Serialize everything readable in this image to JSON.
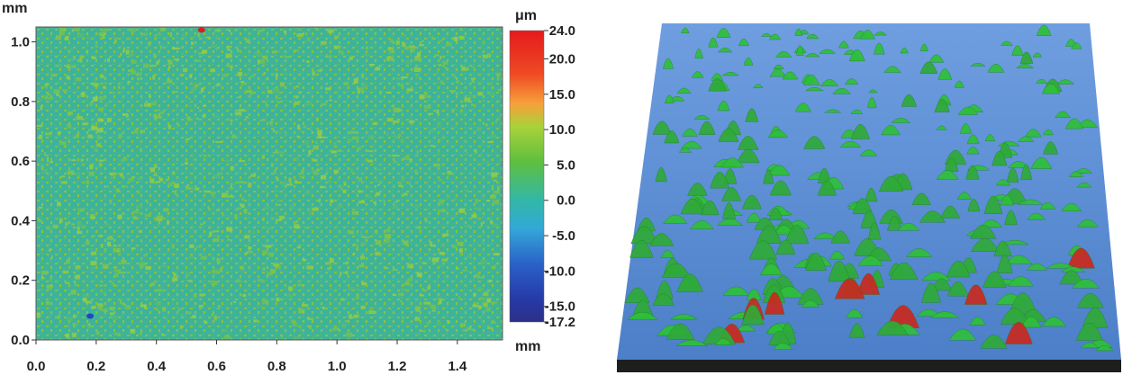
{
  "chart_data": [
    {
      "type": "heatmap",
      "title": "",
      "x_unit_label": "",
      "y_unit_label": "mm",
      "x_axis_label": "mm",
      "xlim": [
        0.0,
        1.55
      ],
      "ylim": [
        0.0,
        1.05
      ],
      "x_ticks": [
        "0.0",
        "0.2",
        "0.4",
        "0.6",
        "0.8",
        "1.0",
        "1.2",
        "1.4"
      ],
      "x_tick_values": [
        0.0,
        0.2,
        0.4,
        0.6,
        0.8,
        1.0,
        1.2,
        1.4
      ],
      "y_ticks": [
        "0.0",
        "0.2",
        "0.4",
        "0.6",
        "0.8",
        "1.0"
      ],
      "y_tick_values": [
        0.0,
        0.2,
        0.4,
        0.6,
        0.8,
        1.0
      ],
      "colorbar": {
        "unit": "μm",
        "min": -17.2,
        "max": 24.0,
        "tick_labels": [
          "24.0",
          "20.0",
          "15.0",
          "10.0",
          "5.0",
          "0.0",
          "-5.0",
          "-10.0",
          "-15.0",
          "-17.2"
        ],
        "tick_values": [
          24.0,
          20.0,
          15.0,
          10.0,
          5.0,
          0.0,
          -5.0,
          -10.0,
          -15.0,
          -17.2
        ]
      },
      "colors": {
        "background_teal": "#3fb39a",
        "speckle_green": "#8cc640",
        "low_blue": "#1f46c4",
        "high_red": "#d62020"
      },
      "notable_features": [
        {
          "description": "blue pit",
          "x": 0.18,
          "y": 0.08
        },
        {
          "description": "red spot",
          "x": 0.55,
          "y": 1.04
        }
      ]
    },
    {
      "type": "surface-3d",
      "title": "",
      "colors": {
        "base_blue": "#5e8fd6",
        "peak_green": "#2fbf3a",
        "peak_red": "#c92a1f",
        "base_slab": "#1e1e1e"
      }
    }
  ]
}
